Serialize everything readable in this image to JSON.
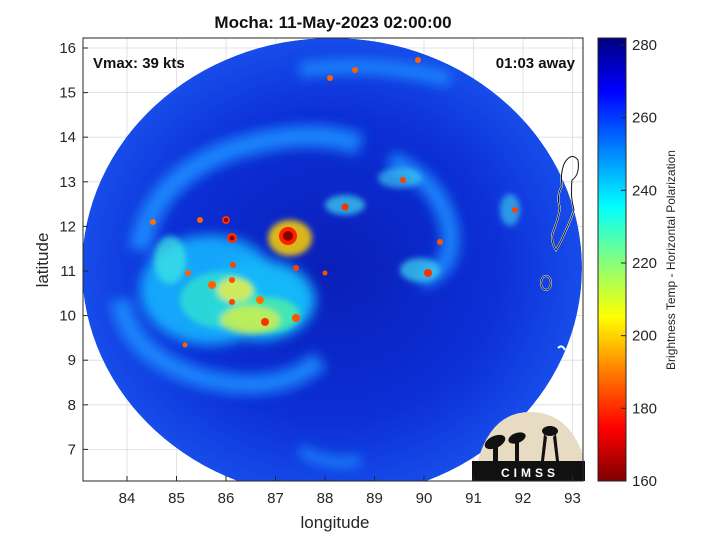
{
  "title": "Mocha: 11-May-2023 02:00:00",
  "map": {
    "xlabel": "longitude",
    "ylabel": "latitude",
    "lon_ticks": [
      "84",
      "85",
      "86",
      "87",
      "88",
      "89",
      "90",
      "91",
      "92",
      "93"
    ],
    "lat_ticks": [
      "16",
      "15",
      "14",
      "13",
      "12",
      "11",
      "10",
      "9",
      "8",
      "7"
    ],
    "vmax_text": "Vmax: 39 kts",
    "time_away_text": "01:03 away"
  },
  "colorbar": {
    "label": "Brightness Temp - Horizontal Polarization",
    "ticks": [
      "280",
      "260",
      "240",
      "220",
      "200",
      "180",
      "160"
    ],
    "colors": [
      "#7f0000",
      "#ff0000",
      "#ff8000",
      "#ffff00",
      "#80ff80",
      "#00ffff",
      "#0080ff",
      "#0000ff",
      "#00007f"
    ]
  },
  "logo": {
    "text": "CIMSS"
  }
}
